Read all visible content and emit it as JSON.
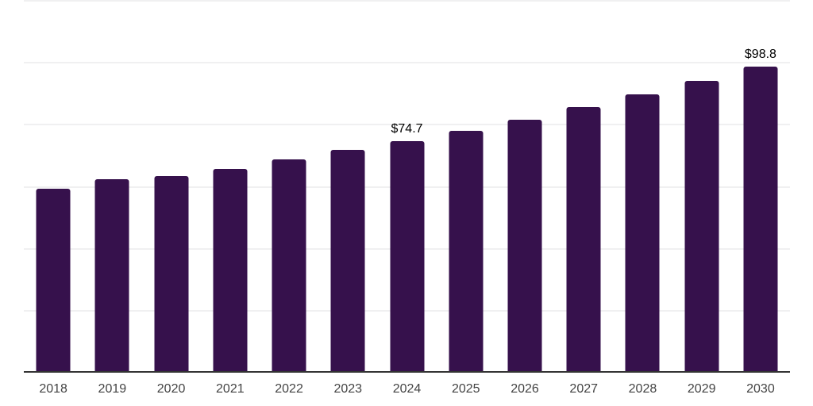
{
  "chart": {
    "background": "#ffffff",
    "bar_color": "#36114c",
    "grid_color": "#f0f0f1",
    "axis_line_color": "#333333",
    "tick_label_color": "#434343",
    "data_label_color": "#000000"
  },
  "chart_data": {
    "type": "bar",
    "title": "",
    "xlabel": "",
    "ylabel": "",
    "categories": [
      "2018",
      "2019",
      "2020",
      "2021",
      "2022",
      "2023",
      "2024",
      "2025",
      "2026",
      "2027",
      "2028",
      "2029",
      "2030"
    ],
    "values": [
      59.4,
      62.4,
      63.5,
      65.8,
      68.9,
      71.9,
      74.7,
      78.1,
      81.7,
      85.7,
      89.8,
      94.2,
      98.8
    ],
    "data_labels": {
      "2024": "$74.7",
      "2030": "$98.8"
    },
    "currency_prefix": "$",
    "ylim": [
      0,
      120
    ],
    "gridline_step": 20,
    "grid": true,
    "legend": false
  }
}
